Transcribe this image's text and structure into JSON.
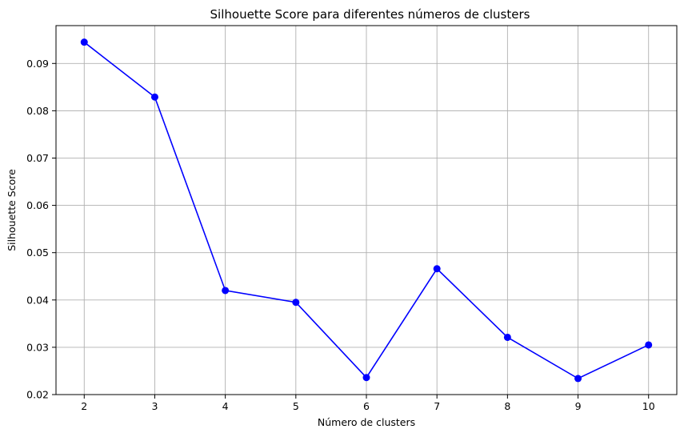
{
  "chart_data": {
    "type": "line",
    "title": "Silhouette Score para diferentes números de clusters",
    "xlabel": "Número de clusters",
    "ylabel": "Silhouette Score",
    "x": [
      2,
      3,
      4,
      5,
      6,
      7,
      8,
      9,
      10
    ],
    "series": [
      {
        "values": [
          0.0945,
          0.0829,
          0.042,
          0.0395,
          0.0236,
          0.0466,
          0.0321,
          0.0234,
          0.0305
        ],
        "color": "#0000ff",
        "marker": "circle"
      }
    ],
    "xticks": [
      "2",
      "3",
      "4",
      "5",
      "6",
      "7",
      "8",
      "9",
      "10"
    ],
    "yticks": [
      "0.02",
      "0.03",
      "0.04",
      "0.05",
      "0.06",
      "0.07",
      "0.08",
      "0.09"
    ],
    "xlim": [
      1.6,
      10.4
    ],
    "ylim": [
      0.02,
      0.098
    ],
    "grid": true
  }
}
